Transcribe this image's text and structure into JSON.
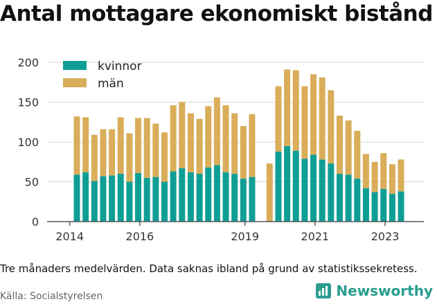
{
  "title": "Antal mottagare ekonomiskt bistånd",
  "note": "Tre månaders medelvärden. Data saknas ibland på grund av statistikssekretess.",
  "source": "Källa: Socialstyrelsen",
  "brand": "Newsworthy",
  "colors": {
    "kvinnor": "#0f9e96",
    "man": "#d9ad5a",
    "brand": "#2a9d8f"
  },
  "chart_data": {
    "type": "bar",
    "stacked": true,
    "ylim": [
      0,
      200
    ],
    "yticks": [
      0,
      50,
      100,
      150,
      200
    ],
    "xtick_labels": [
      {
        "label": "2014",
        "x": 0
      },
      {
        "label": "2016",
        "x": 8
      },
      {
        "label": "2019",
        "x": 20
      },
      {
        "label": "2021",
        "x": 28
      },
      {
        "label": "2023",
        "x": 36
      }
    ],
    "legend": {
      "placement": "top-left",
      "entries": [
        "kvinnor",
        "män"
      ]
    },
    "series": [
      {
        "name": "kvinnor",
        "values": [
          59,
          62,
          51,
          57,
          58,
          60,
          50,
          61,
          55,
          56,
          50,
          63,
          67,
          62,
          60,
          68,
          71,
          62,
          60,
          54,
          56,
          null,
          0,
          88,
          95,
          89,
          79,
          84,
          78,
          73,
          60,
          59,
          54,
          42,
          37,
          41,
          35,
          38
        ]
      },
      {
        "name": "män",
        "values": [
          73,
          69,
          58,
          59,
          58,
          71,
          61,
          69,
          75,
          67,
          62,
          83,
          83,
          74,
          69,
          77,
          85,
          84,
          76,
          66,
          79,
          null,
          73,
          82,
          96,
          101,
          91,
          101,
          103,
          92,
          73,
          68,
          60,
          43,
          38,
          45,
          37,
          40
        ]
      }
    ]
  }
}
